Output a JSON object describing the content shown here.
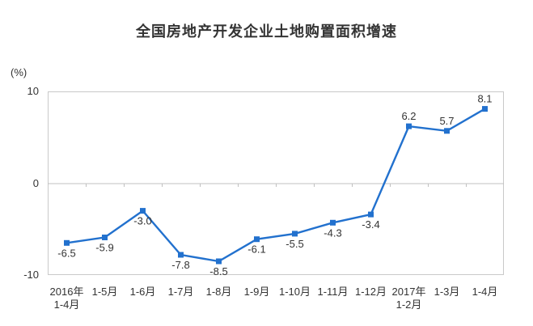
{
  "chart_data": {
    "type": "line",
    "title": "全国房地产开发企业土地购置面积增速",
    "unit_label": "(%)",
    "categories": [
      "2016年\n1-4月",
      "1-5月",
      "1-6月",
      "1-7月",
      "1-8月",
      "1-9月",
      "1-10月",
      "1-11月",
      "1-12月",
      "2017年\n1-2月",
      "1-3月",
      "1-4月"
    ],
    "values": [
      -6.5,
      -5.9,
      -3.0,
      -7.8,
      -8.5,
      -6.1,
      -5.5,
      -4.3,
      -3.4,
      6.2,
      5.7,
      8.1
    ],
    "data_labels": [
      "-6.5",
      "-5.9",
      "-3.0",
      "-7.8",
      "-8.5",
      "-6.1",
      "-5.5",
      "-4.3",
      "-3.4",
      "6.2",
      "5.7",
      "8.1"
    ],
    "ylim": [
      -10,
      10
    ],
    "yticks": [
      10,
      0,
      -10
    ],
    "ytick_labels": [
      "10",
      "0",
      "-10"
    ],
    "grid": "zero-axis-with-category-ticks",
    "legend": "none",
    "series_color": "#2271CE",
    "plot_border_color": "#c9c9c9",
    "zero_line_color": "#c0c0c0",
    "label_color": "#333333"
  }
}
